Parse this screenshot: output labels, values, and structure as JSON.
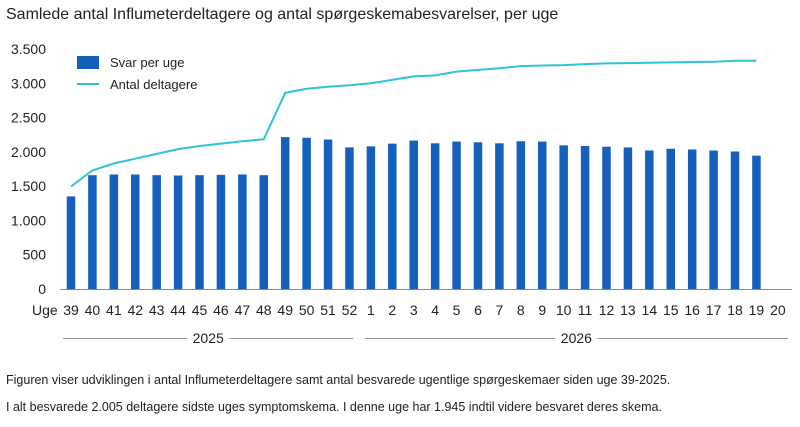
{
  "title": "Samlede antal Influmeterdeltagere og antal spørgeskemabesvarelser, per uge",
  "footnotes": [
    "Figuren viser udviklingen i antal Influmeterdeltagere  samt antal besvarede ugentlige spørgeskemaer siden uge 39-2025.",
    "I alt besvarede 2.005 deltagere sidste uges symptomskema. I denne uge har 1.945 indtil videre besvaret deres skema."
  ],
  "colors": {
    "bar": "#1560bd",
    "line": "#2ec4d6",
    "axis": "#888888",
    "grid": "#999999"
  },
  "chart_data": {
    "type": "bar",
    "xlabel": "Uge",
    "ylim": [
      0,
      3500
    ],
    "yticks": [
      0,
      500,
      1000,
      1500,
      2000,
      2500,
      3000,
      3500
    ],
    "ytick_labels": [
      "0",
      "500",
      "1.000",
      "1.500",
      "2.000",
      "2.500",
      "3.000",
      "3.500"
    ],
    "categories": [
      "39",
      "40",
      "41",
      "42",
      "43",
      "44",
      "45",
      "46",
      "47",
      "48",
      "49",
      "50",
      "51",
      "52",
      "1",
      "2",
      "3",
      "4",
      "5",
      "6",
      "7",
      "8",
      "9",
      "10",
      "11",
      "12",
      "13",
      "14",
      "15",
      "16",
      "17",
      "18",
      "19"
    ],
    "extra_tick_labels": [
      "20"
    ],
    "year_labels": [
      "2025",
      "2026"
    ],
    "legend_position": "top-left",
    "series": [
      {
        "name": "Svar per uge",
        "type": "bar",
        "values": [
          1350,
          1660,
          1670,
          1670,
          1660,
          1655,
          1660,
          1665,
          1670,
          1660,
          2215,
          2205,
          2180,
          2065,
          2080,
          2120,
          2165,
          2125,
          2150,
          2140,
          2125,
          2155,
          2150,
          2095,
          2085,
          2075,
          2065,
          2020,
          2045,
          2035,
          2020,
          2005,
          1945
        ]
      },
      {
        "name": "Antal deltagere",
        "type": "line",
        "values": [
          1495,
          1730,
          1830,
          1900,
          1970,
          2040,
          2085,
          2120,
          2155,
          2185,
          2860,
          2920,
          2950,
          2970,
          3000,
          3050,
          3100,
          3115,
          3170,
          3195,
          3220,
          3250,
          3260,
          3265,
          3280,
          3290,
          3295,
          3300,
          3305,
          3310,
          3315,
          3330,
          3330
        ]
      }
    ]
  }
}
